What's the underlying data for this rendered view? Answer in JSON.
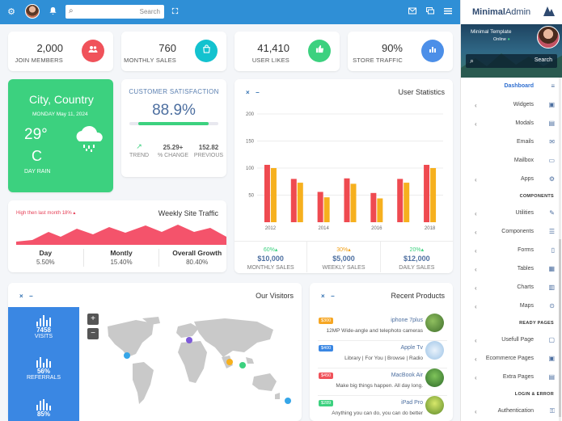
{
  "colors": {
    "topbar": "#2f8fd6",
    "red": "#f0525a",
    "teal": "#13c2cf",
    "green": "#3cd17f",
    "blue": "#4c8fe8",
    "orange": "#f6b01e",
    "accent": "#3a87e3"
  },
  "topbar": {
    "icons": [
      "gear-icon",
      "avatar",
      "bell-icon",
      "search-icon",
      "fullscreen-icon",
      "mail-icon",
      "chat-icon",
      "menu-icon"
    ],
    "search_placeholder": "Search"
  },
  "stats": [
    {
      "value": "2,000",
      "label": "JOIN MEMBERS",
      "icon": "users-icon",
      "color": "#f0525a"
    },
    {
      "value": "760",
      "label": "MONTHLY SALES",
      "icon": "bag-icon",
      "color": "#13c2cf"
    },
    {
      "value": "41,410",
      "label": "USER LIKES",
      "icon": "thumbs-up-icon",
      "color": "#3cd17f"
    },
    {
      "value": "90%",
      "label": "STORE TRAFFIC",
      "icon": "bar-chart-icon",
      "color": "#4c8fe8"
    }
  ],
  "weather": {
    "city": "City, Country",
    "date": "MONDAY May 11, 2024",
    "temp": "29°",
    "unit": "C",
    "condition": "DAY RAIN",
    "icon": "rain-cloud-icon"
  },
  "satisfaction": {
    "title": "CUSTOMER SATISFACTION",
    "percent": "88.9%",
    "progress": 0.889,
    "trend_label": "TREND",
    "change_value": "25.29+",
    "change_label": "% CHANGE",
    "previous_value": "152.82",
    "previous_label": "PREVIOUS"
  },
  "weekly_traffic": {
    "title": "Weekly Site Traffic",
    "note": "High then last month 18%",
    "cols": [
      {
        "label": "Day",
        "value": "5.50%"
      },
      {
        "label": "Montly",
        "value": "15.40%"
      },
      {
        "label": "Overall Growth",
        "value": "80.40%"
      }
    ]
  },
  "user_statistics": {
    "title": "User Statistics",
    "footer": [
      {
        "pct": "60%",
        "value": "$10,000",
        "label": "MONTHLY SALES",
        "color": "green"
      },
      {
        "pct": "30%",
        "value": "$5,000",
        "label": "WEEKLY SALES",
        "color": "orange"
      },
      {
        "pct": "20%",
        "value": "$12,000",
        "label": "DAILY SALES",
        "color": "green"
      }
    ]
  },
  "chart_data": {
    "type": "bar",
    "title": "User Statistics",
    "y_ticks": [
      "200",
      "150",
      "100",
      "50"
    ],
    "x_ticks": [
      "2012",
      "2014",
      "2016",
      "2018"
    ],
    "ylim": [
      0,
      200
    ],
    "categories": [
      "2012",
      "2013",
      "2014",
      "2015",
      "2016",
      "2017",
      "2018"
    ],
    "series": [
      {
        "values": [
          106,
          80,
          56,
          81,
          54,
          80,
          106
        ],
        "color": "#ef4a50"
      },
      {
        "values": [
          100,
          73,
          46,
          71,
          44,
          73,
          100
        ],
        "color": "#f6b01e"
      }
    ]
  },
  "visitors": {
    "title": "Our Visitors",
    "stats": [
      {
        "value": "7458",
        "label": "VISITS"
      },
      {
        "value": "56%",
        "label": "REFERRALS"
      },
      {
        "value": "85%",
        "label": ""
      }
    ],
    "zoom_in": "+",
    "zoom_out": "−"
  },
  "recent_products": {
    "title": "Recent Products",
    "items": [
      {
        "price": "$300",
        "name": "iphone 7plus",
        "desc": "12MP Wide-angle and telephoto cameras",
        "color": "#f6a623"
      },
      {
        "price": "$400",
        "name": "Apple Tv",
        "desc": "Library | For You | Browse | Radio",
        "color": "#3a87e3"
      },
      {
        "price": "$450",
        "name": "MacBook Air",
        "desc": "Make big things happen. All day long.",
        "color": "#f0525a"
      },
      {
        "price": "$289",
        "name": "iPad Pro",
        "desc": "Anything you can do, you can do better",
        "color": "#3cd17f"
      }
    ]
  },
  "sidebar": {
    "brand_bold": "Minimal",
    "brand_light": "Admin",
    "template_name": "Minimal Template",
    "status": "Online",
    "search_placeholder": "Search",
    "items": [
      {
        "label": "Dashboard",
        "icon": "database-icon",
        "active": true
      },
      {
        "label": "Widgets",
        "icon": "cube-icon"
      },
      {
        "label": "Modals",
        "icon": "window-icon"
      },
      {
        "label": "Emails",
        "icon": "mail-icon"
      },
      {
        "label": "Mailbox",
        "icon": "inbox-icon"
      },
      {
        "label": "Apps",
        "icon": "gear-icon"
      }
    ],
    "components_head": "COMPONENTS",
    "components": [
      {
        "label": "Utilities",
        "icon": "pencil-icon"
      },
      {
        "label": "Components",
        "icon": "sliders-icon"
      },
      {
        "label": "Forms",
        "icon": "clipboard-icon"
      },
      {
        "label": "Tables",
        "icon": "table-icon"
      },
      {
        "label": "Charts",
        "icon": "chart-icon"
      },
      {
        "label": "Maps",
        "icon": "map-pin-icon"
      }
    ],
    "ready_head": "READY PAGES",
    "ready": [
      {
        "label": "Usefull Page",
        "icon": "file-icon"
      },
      {
        "label": "Ecommerce Pages",
        "icon": "cart-icon"
      },
      {
        "label": "Extra Pages",
        "icon": "document-icon"
      }
    ],
    "login_head": "LOGIN & ERROR",
    "login": [
      {
        "label": "Authentication",
        "icon": "lock-icon"
      }
    ]
  }
}
